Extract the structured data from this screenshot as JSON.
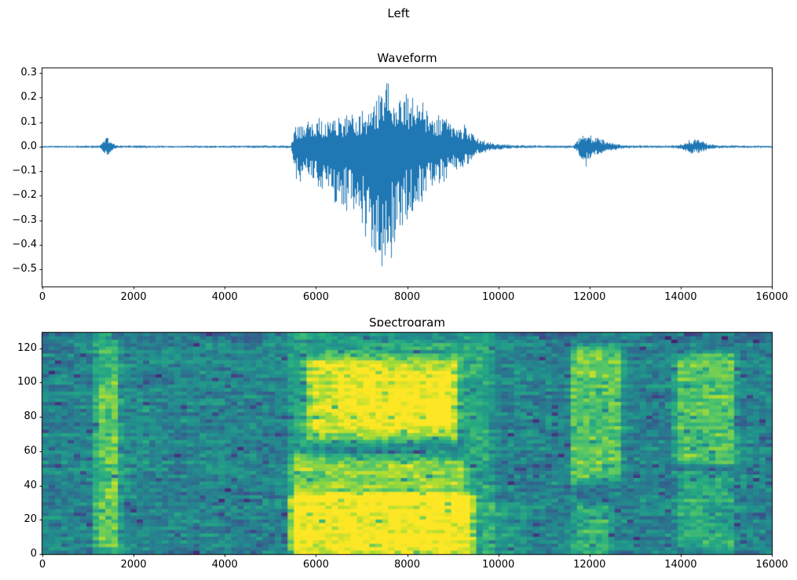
{
  "figure_title": "Left",
  "chart_data": [
    {
      "type": "line",
      "title": "Waveform",
      "xlabel": "",
      "ylabel": "",
      "line_color": "#1f77b4",
      "xlim": [
        0,
        16000
      ],
      "ylim": [
        -0.57,
        0.32
      ],
      "xtick_values": [
        0,
        2000,
        4000,
        6000,
        8000,
        10000,
        12000,
        14000,
        16000
      ],
      "xtick_labels": [
        "0",
        "2000",
        "4000",
        "6000",
        "8000",
        "10000",
        "12000",
        "14000",
        "16000"
      ],
      "ytick_values": [
        0.3,
        0.2,
        0.1,
        0.0,
        -0.1,
        -0.2,
        -0.3,
        -0.4,
        -0.5
      ],
      "ytick_labels": [
        "0.3",
        "0.2",
        "0.1",
        "0.0",
        "−0.1",
        "−0.2",
        "−0.3",
        "−0.4",
        "−0.5"
      ],
      "envelope_points": [
        [
          0,
          0.004,
          -0.004
        ],
        [
          1250,
          0.005,
          -0.005
        ],
        [
          1350,
          0.03,
          -0.03
        ],
        [
          1420,
          0.05,
          -0.05
        ],
        [
          1500,
          0.02,
          -0.02
        ],
        [
          1620,
          0.006,
          -0.006
        ],
        [
          3000,
          0.004,
          -0.004
        ],
        [
          5450,
          0.006,
          -0.006
        ],
        [
          5560,
          0.09,
          -0.13
        ],
        [
          5700,
          0.1,
          -0.15
        ],
        [
          5900,
          0.11,
          -0.14
        ],
        [
          6100,
          0.12,
          -0.2
        ],
        [
          6300,
          0.1,
          -0.24
        ],
        [
          6500,
          0.12,
          -0.22
        ],
        [
          6700,
          0.13,
          -0.28
        ],
        [
          6900,
          0.14,
          -0.3
        ],
        [
          7100,
          0.16,
          -0.38
        ],
        [
          7300,
          0.22,
          -0.48
        ],
        [
          7450,
          0.27,
          -0.53
        ],
        [
          7600,
          0.26,
          -0.5
        ],
        [
          7750,
          0.23,
          -0.38
        ],
        [
          7900,
          0.24,
          -0.32
        ],
        [
          8100,
          0.22,
          -0.28
        ],
        [
          8300,
          0.19,
          -0.24
        ],
        [
          8500,
          0.16,
          -0.2
        ],
        [
          8700,
          0.13,
          -0.16
        ],
        [
          8900,
          0.11,
          -0.13
        ],
        [
          9100,
          0.08,
          -0.1
        ],
        [
          9300,
          0.1,
          -0.08
        ],
        [
          9450,
          0.05,
          -0.05
        ],
        [
          9600,
          0.03,
          -0.03
        ],
        [
          9800,
          0.02,
          -0.02
        ],
        [
          10000,
          0.012,
          -0.012
        ],
        [
          10300,
          0.008,
          -0.008
        ],
        [
          11000,
          0.005,
          -0.005
        ],
        [
          11650,
          0.006,
          -0.006
        ],
        [
          11750,
          0.03,
          -0.03
        ],
        [
          11900,
          0.07,
          -0.09
        ],
        [
          12050,
          0.05,
          -0.05
        ],
        [
          12200,
          0.035,
          -0.035
        ],
        [
          12400,
          0.025,
          -0.025
        ],
        [
          12600,
          0.012,
          -0.012
        ],
        [
          12800,
          0.006,
          -0.006
        ],
        [
          13800,
          0.005,
          -0.005
        ],
        [
          14050,
          0.012,
          -0.012
        ],
        [
          14200,
          0.028,
          -0.028
        ],
        [
          14400,
          0.03,
          -0.03
        ],
        [
          14600,
          0.015,
          -0.015
        ],
        [
          14800,
          0.006,
          -0.006
        ],
        [
          16000,
          0.004,
          -0.004
        ]
      ]
    },
    {
      "type": "heatmap",
      "title": "Spectrogram",
      "xlabel": "",
      "ylabel": "",
      "colormap": "viridis",
      "xlim": [
        0,
        16000
      ],
      "ylim": [
        0,
        129
      ],
      "xtick_values": [
        0,
        2000,
        4000,
        6000,
        8000,
        10000,
        12000,
        14000,
        16000
      ],
      "xtick_labels": [
        "0",
        "2000",
        "4000",
        "6000",
        "8000",
        "10000",
        "12000",
        "14000",
        "16000"
      ],
      "ytick_values": [
        0,
        20,
        40,
        60,
        80,
        100,
        120
      ],
      "ytick_labels": [
        "0",
        "20",
        "40",
        "60",
        "80",
        "100",
        "120"
      ],
      "time_bins": 116,
      "freq_bins": 64,
      "background_level": 0.45,
      "events": [
        {
          "x": [
            1230,
            1560
          ],
          "f": [
            0,
            129
          ],
          "amp": 0.18
        },
        {
          "x": [
            1230,
            1560
          ],
          "f": [
            8,
            40
          ],
          "amp": 0.15
        },
        {
          "x": [
            1230,
            1560
          ],
          "f": [
            55,
            100
          ],
          "amp": 0.12
        },
        {
          "x": [
            1580,
            1770
          ],
          "f": [
            0,
            110
          ],
          "amp": 0.1
        },
        {
          "x": [
            2050,
            2250
          ],
          "f": [
            55,
            85
          ],
          "amp": 0.07
        },
        {
          "x": [
            5500,
            9800
          ],
          "f": [
            0,
            129
          ],
          "amp": 0.15
        },
        {
          "x": [
            5500,
            9400
          ],
          "f": [
            2,
            32
          ],
          "amp": 0.42
        },
        {
          "x": [
            5550,
            9200
          ],
          "f": [
            34,
            54
          ],
          "amp": 0.22
        },
        {
          "x": [
            5900,
            9050
          ],
          "f": [
            68,
            112
          ],
          "amp": 0.32
        },
        {
          "x": [
            6600,
            8900
          ],
          "f": [
            74,
            104
          ],
          "amp": 0.1
        },
        {
          "x": [
            5900,
            9200
          ],
          "f": [
            58,
            68
          ],
          "amp": -0.1
        },
        {
          "x": [
            9800,
            10500
          ],
          "f": [
            0,
            28
          ],
          "amp": 0.1
        },
        {
          "x": [
            11650,
            12650
          ],
          "f": [
            45,
            118
          ],
          "amp": 0.3
        },
        {
          "x": [
            11700,
            12400
          ],
          "f": [
            2,
            26
          ],
          "amp": 0.18
        },
        {
          "x": [
            13950,
            15150
          ],
          "f": [
            55,
            115
          ],
          "amp": 0.28
        },
        {
          "x": [
            14000,
            15100
          ],
          "f": [
            5,
            45
          ],
          "amp": 0.16
        }
      ]
    }
  ]
}
